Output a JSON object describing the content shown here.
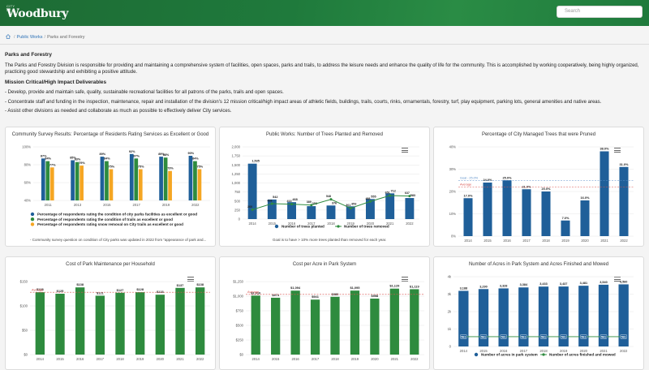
{
  "header": {
    "logo_small": "CITY OF",
    "logo_name": "Woodbury",
    "search_placeholder": "Search"
  },
  "breadcrumb": {
    "items": [
      "Public Works",
      "Parks and Forestry"
    ]
  },
  "intro": {
    "title": "Parks and Forestry",
    "paragraph": "The Parks and Forestry Division is responsible for providing and maintaining a comprehensive system of facilities, open spaces, parks and trails, to address the leisure needs and enhance the quality of life for the community. This is accomplished by working cooperatively, being highly organized, practicing good stewardship and exhibiting a positive attitude.",
    "subtitle": "Mission Critical/High Impact Deliverables",
    "bullets": [
      "- Develop, provide and maintain safe, quality, sustainable recreational facilities for all patrons of the parks, trails and open spaces.",
      "- Concentrate staff and funding in the inspection, maintenance, repair and installation of the division's 12 mission critical/high impact areas of athletic fields, buildings, trails, courts, rinks, ornamentals, forestry, turf, play equipment, parking lots, general amenities and native areas.",
      "- Assist other divisions as needed and collaborate as much as possible to effectively deliver City services."
    ]
  },
  "cards": {
    "survey": {
      "footnote": "- Community survey question on condition of City parks was updated in 2022 from \"appearance of park and..."
    },
    "trees": {
      "footnote": "Goal is to have > 10% more trees planted than removed for each year."
    }
  },
  "colors": {
    "header_green": "#1f7a3c",
    "bar_blue": "#1f5f99",
    "bar_green": "#2e8b3e",
    "bar_orange": "#f5a623",
    "line_red": "#d9534f",
    "line_green": "#2e8b3e"
  },
  "chart_data": [
    {
      "type": "bar",
      "title": "Community Survey Results: Percentage of Residents Rating Services as Excellent or Good",
      "categories": [
        "2011",
        "2013",
        "2015",
        "2017",
        "2019",
        "2022"
      ],
      "series": [
        {
          "name": "Percentage of respondents rating the condition of city parks facilities as excellent or good",
          "values": [
            87,
            85,
            89,
            92,
            89,
            90
          ]
        },
        {
          "name": "Percentage of respondents rating the condition of trails as excellent or good",
          "values": [
            84,
            83,
            84,
            87,
            88,
            84
          ]
        },
        {
          "name": "Percentage of respondents rating snow removal on City trails as excellent or good",
          "values": [
            77,
            79,
            75,
            75,
            73,
            75
          ]
        }
      ],
      "ylim": [
        40,
        100
      ],
      "yticks": [
        "40%",
        "60%",
        "80%",
        "100%"
      ]
    },
    {
      "type": "bar",
      "title": "Public Works: Number of Trees Planted and Removed",
      "categories": [
        "2014",
        "2015",
        "2016",
        "2017",
        "2018",
        "2019",
        "2020",
        "2021",
        "2022"
      ],
      "series": [
        {
          "name": "Number of trees planted",
          "values": [
            1535,
            542,
            468,
            358,
            376,
            353,
            555,
            712,
            583
          ]
        },
        {
          "name": "Number of trees removed",
          "values": [
            260,
            428,
            413,
            389,
            548,
            301,
            488,
            651,
            637
          ]
        }
      ],
      "ylim": [
        0,
        2000
      ],
      "yticks": [
        "0",
        "250",
        "500",
        "750",
        "1,000",
        "1,250",
        "1,500",
        "1,750",
        "2,000"
      ]
    },
    {
      "type": "bar",
      "title": "Percentage of City Managed Trees that were Pruned",
      "categories": [
        "2014",
        "2015",
        "2016",
        "2017",
        "2018",
        "2019",
        "2020",
        "2021",
        "2022"
      ],
      "series": [
        {
          "name": "Percentage pruned",
          "values": [
            17.0,
            24.0,
            25.0,
            21.0,
            20.0,
            7.0,
            16.0,
            38.0,
            31.0
          ]
        }
      ],
      "value_labels": [
        "17.0%",
        "24.0%",
        "25.0%",
        "21.0%",
        "20.0%",
        "7.0%",
        "16.0%",
        "38.0%",
        "31.0%"
      ],
      "reference_lines": [
        {
          "name": "Goal - 25.0%",
          "value": 25
        },
        {
          "name": "Average",
          "value": 22
        }
      ],
      "ylim": [
        0,
        40
      ],
      "yticks": [
        "0%",
        "10%",
        "20%",
        "30%",
        "40%"
      ]
    },
    {
      "type": "bar",
      "title": "Cost of Park Maintenance per Household",
      "categories": [
        "2014",
        "2015",
        "2016",
        "2017",
        "2018",
        "2019",
        "2020",
        "2021",
        "2022"
      ],
      "series": [
        {
          "name": "Cost per household",
          "values": [
            128,
            125,
            138,
            121,
            127,
            128,
            123,
            137,
            138
          ]
        }
      ],
      "value_labels": [
        "$128",
        "$125",
        "$138",
        "$121",
        "$127",
        "$128",
        "$123",
        "$137",
        "$138"
      ],
      "reference_lines": [
        {
          "name": "Average",
          "value": 128
        }
      ],
      "ylim": [
        0,
        150
      ],
      "yticks": [
        "$0",
        "$50",
        "$100",
        "$150"
      ]
    },
    {
      "type": "bar",
      "title": "Cost per Acre in Park System",
      "categories": [
        "2014",
        "2015",
        "2016",
        "2017",
        "2018",
        "2019",
        "2020",
        "2021",
        "2022"
      ],
      "series": [
        {
          "name": "Cost per acre",
          "values": [
            1010,
            973,
            1094,
            941,
            989,
            1095,
            958,
            1129,
            1119
          ]
        }
      ],
      "value_labels": [
        "$1,010",
        "$973",
        "$1,094",
        "$941",
        "$989",
        "$1,095",
        "$958",
        "$1,129",
        "$1,119"
      ],
      "reference_lines": [
        {
          "name": "Average",
          "value": 1030
        }
      ],
      "ylim": [
        0,
        1250
      ],
      "yticks": [
        "$0",
        "$250",
        "$500",
        "$750",
        "$1,000",
        "$1,250"
      ]
    },
    {
      "type": "bar",
      "title": "Number of Acres in Park System and Acres Finished and Mowed",
      "categories": [
        "2014",
        "2015",
        "2016",
        "2017",
        "2018",
        "2019",
        "2020",
        "2021",
        "2022"
      ],
      "series": [
        {
          "name": "Number of acres in park system",
          "values": [
            3188,
            3290,
            3328,
            3384,
            3433,
            3437,
            3481,
            3540,
            3560
          ]
        },
        {
          "name": "Number of acres finished and mowed",
          "values": [
            561,
            561,
            561,
            561,
            561,
            561,
            561,
            561,
            561
          ]
        }
      ],
      "value_labels": [
        "3,188",
        "3,290",
        "3,328",
        "3,384",
        "3,433",
        "3,437",
        "3,481",
        "3,540",
        "3,560"
      ],
      "secondary_labels": [
        "561",
        "561",
        "561",
        "561",
        "561",
        "561",
        "561",
        "561",
        "561"
      ],
      "ylim": [
        0,
        4000
      ],
      "yticks": [
        "0",
        "1k",
        "2k",
        "3k",
        "4k"
      ]
    }
  ]
}
